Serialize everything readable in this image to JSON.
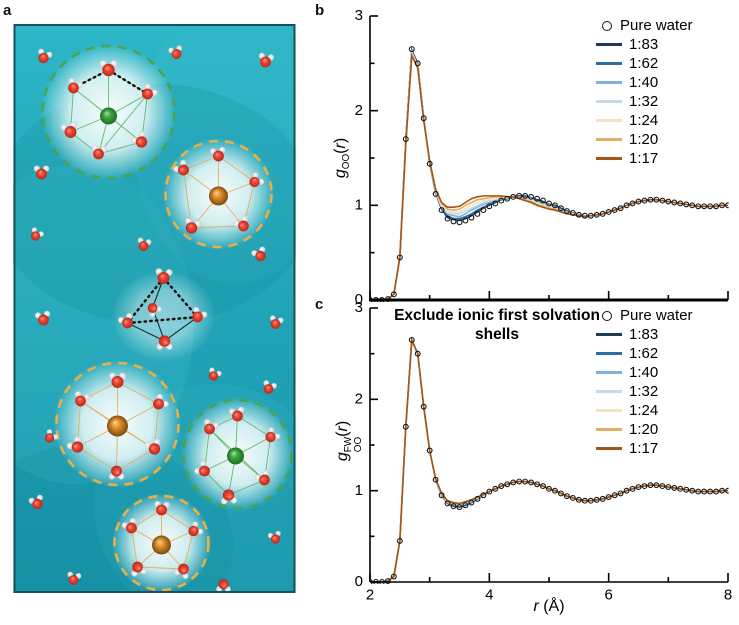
{
  "panel_labels": {
    "a": "a",
    "b": "b",
    "c": "c"
  },
  "colors": {
    "axis": "#000000",
    "teal_background": "#1ea9bc",
    "green_shell": "#4ba24f",
    "orange_shell": "#ecaf45",
    "oxygen_red": "#e0392a",
    "hydrogen_white": "#f2f2f2"
  },
  "chart_data": [
    {
      "id": "gOO",
      "panel": "b",
      "type": "line",
      "title": "",
      "ylabel_html": "<i>g</i><sub>OO</sub>(<i>r</i>)",
      "xlabel_html": "<i>r</i> (&#197;)",
      "xlim": [
        2,
        8
      ],
      "ylim": [
        0,
        3
      ],
      "xticks": [
        2,
        4,
        6,
        8
      ],
      "xminor": [
        3,
        5,
        7
      ],
      "yticks": [
        0,
        1,
        2,
        3
      ],
      "yminor": [
        0.5,
        1.5,
        2.5
      ],
      "legend_position": "top-right",
      "grid": false,
      "r_start": 2.0,
      "r_step": 0.1,
      "pure_water": {
        "label": "Pure water",
        "marker": "open-circle",
        "color": "#000000",
        "values": [
          0,
          0,
          0,
          0.01,
          0.06,
          0.45,
          1.7,
          2.65,
          2.5,
          1.92,
          1.44,
          1.12,
          0.95,
          0.86,
          0.83,
          0.82,
          0.84,
          0.87,
          0.91,
          0.95,
          0.99,
          1.02,
          1.05,
          1.07,
          1.09,
          1.1,
          1.1,
          1.09,
          1.07,
          1.05,
          1.02,
          1.0,
          0.97,
          0.94,
          0.92,
          0.9,
          0.89,
          0.89,
          0.9,
          0.91,
          0.93,
          0.95,
          0.97,
          1.0,
          1.02,
          1.04,
          1.05,
          1.06,
          1.06,
          1.05,
          1.04,
          1.03,
          1.02,
          1.01,
          1.0,
          0.99,
          0.99,
          0.99,
          0.99,
          1.0,
          1.0
        ]
      },
      "overlay_r_start": 2.6,
      "series": [
        {
          "label": "1:83",
          "color": "#1b3a5c",
          "values": [
            1.7,
            2.64,
            2.5,
            1.92,
            1.44,
            1.13,
            0.96,
            0.87,
            0.85,
            0.84,
            0.86,
            0.89,
            0.93,
            0.97,
            1.0,
            1.03,
            1.06,
            1.07,
            1.09,
            1.1,
            1.1,
            1.08,
            1.06,
            1.04,
            1.01,
            1.0,
            0.97,
            0.94,
            0.92,
            0.9,
            0.89
          ]
        },
        {
          "label": "1:62",
          "color": "#2e6da4",
          "values": [
            1.69,
            2.63,
            2.49,
            1.92,
            1.45,
            1.13,
            0.97,
            0.89,
            0.86,
            0.86,
            0.88,
            0.91,
            0.95,
            0.98,
            1.01,
            1.04,
            1.06,
            1.07,
            1.09,
            1.09,
            1.09,
            1.08,
            1.05,
            1.03,
            1.01,
            0.99,
            0.96,
            0.93,
            0.92,
            0.9,
            0.89
          ]
        },
        {
          "label": "1:40",
          "color": "#7fb2d5",
          "values": [
            1.68,
            2.62,
            2.48,
            1.91,
            1.45,
            1.14,
            0.98,
            0.91,
            0.89,
            0.88,
            0.91,
            0.95,
            0.98,
            1.01,
            1.03,
            1.05,
            1.07,
            1.08,
            1.09,
            1.09,
            1.08,
            1.07,
            1.04,
            1.02,
            1.0,
            0.98,
            0.95,
            0.93,
            0.91,
            0.9,
            0.89
          ]
        },
        {
          "label": "1:32",
          "color": "#c6d9e8",
          "values": [
            1.67,
            2.61,
            2.47,
            1.91,
            1.46,
            1.15,
            0.99,
            0.92,
            0.91,
            0.91,
            0.94,
            0.97,
            1.0,
            1.03,
            1.05,
            1.06,
            1.08,
            1.08,
            1.09,
            1.08,
            1.07,
            1.06,
            1.03,
            1.01,
            0.99,
            0.97,
            0.95,
            0.92,
            0.91,
            0.89,
            0.88
          ]
        },
        {
          "label": "1:24",
          "color": "#f2e4c2",
          "values": [
            1.67,
            2.6,
            2.47,
            1.91,
            1.46,
            1.15,
            1.0,
            0.94,
            0.93,
            0.93,
            0.97,
            1.0,
            1.03,
            1.05,
            1.06,
            1.07,
            1.08,
            1.08,
            1.09,
            1.08,
            1.07,
            1.05,
            1.02,
            1.0,
            0.98,
            0.97,
            0.94,
            0.92,
            0.91,
            0.89,
            0.88
          ]
        },
        {
          "label": "1:20",
          "color": "#e3ae62",
          "values": [
            1.66,
            2.59,
            2.46,
            1.9,
            1.46,
            1.16,
            1.02,
            0.96,
            0.95,
            0.96,
            1.0,
            1.03,
            1.06,
            1.07,
            1.08,
            1.09,
            1.09,
            1.09,
            1.09,
            1.08,
            1.06,
            1.04,
            1.01,
            0.99,
            0.97,
            0.96,
            0.94,
            0.92,
            0.9,
            0.89,
            0.88
          ]
        },
        {
          "label": "1:17",
          "color": "#a4561a",
          "values": [
            1.65,
            2.58,
            2.45,
            1.9,
            1.47,
            1.17,
            1.03,
            0.98,
            0.98,
            0.99,
            1.03,
            1.07,
            1.09,
            1.1,
            1.1,
            1.1,
            1.1,
            1.09,
            1.09,
            1.07,
            1.05,
            1.03,
            1.0,
            0.98,
            0.96,
            0.95,
            0.93,
            0.91,
            0.9,
            0.89,
            0.88
          ]
        }
      ]
    },
    {
      "id": "gOO_FW",
      "panel": "c",
      "type": "line",
      "title": "Exclude ionic first solvation shells",
      "ylabel_html": "<i>g</i><span class='stack'><sup>FW</sup><sub>OO</sub></span>(<i>r</i>)",
      "xlabel_html": "<i>r</i> (&#197;)",
      "xlim": [
        2,
        8
      ],
      "ylim": [
        0,
        3
      ],
      "xticks": [
        2,
        4,
        6,
        8
      ],
      "xminor": [
        3,
        5,
        7
      ],
      "yticks": [
        0,
        1,
        2,
        3
      ],
      "yminor": [
        0.5,
        1.5,
        2.5
      ],
      "legend_position": "top-right",
      "grid": false,
      "r_start": 2.0,
      "r_step": 0.1,
      "pure_water": {
        "label": "Pure water",
        "marker": "open-circle",
        "color": "#000000",
        "values": [
          0,
          0,
          0,
          0.01,
          0.06,
          0.45,
          1.7,
          2.65,
          2.5,
          1.92,
          1.44,
          1.12,
          0.95,
          0.86,
          0.83,
          0.82,
          0.84,
          0.87,
          0.91,
          0.95,
          0.99,
          1.02,
          1.05,
          1.07,
          1.09,
          1.1,
          1.1,
          1.09,
          1.07,
          1.05,
          1.02,
          1.0,
          0.97,
          0.94,
          0.92,
          0.9,
          0.89,
          0.89,
          0.9,
          0.91,
          0.93,
          0.95,
          0.97,
          1.0,
          1.02,
          1.04,
          1.05,
          1.06,
          1.06,
          1.05,
          1.04,
          1.03,
          1.02,
          1.01,
          1.0,
          0.99,
          0.99,
          0.99,
          0.99,
          1.0,
          1.0
        ]
      },
      "overlay_r_start": 3.0,
      "series": [
        {
          "label": "1:83",
          "color": "#1b3a5c",
          "values": [
            1.44,
            1.12,
            0.95,
            0.86,
            0.83,
            0.82,
            0.84,
            0.87,
            0.91,
            0.95,
            0.99
          ]
        },
        {
          "label": "1:62",
          "color": "#2e6da4",
          "values": [
            1.44,
            1.12,
            0.95,
            0.87,
            0.84,
            0.83,
            0.85,
            0.88,
            0.91,
            0.95,
            0.99
          ]
        },
        {
          "label": "1:40",
          "color": "#7fb2d5",
          "values": [
            1.44,
            1.12,
            0.96,
            0.87,
            0.85,
            0.84,
            0.86,
            0.88,
            0.92,
            0.95,
            0.99
          ]
        },
        {
          "label": "1:32",
          "color": "#c6d9e8",
          "values": [
            1.44,
            1.13,
            0.96,
            0.88,
            0.85,
            0.84,
            0.86,
            0.89,
            0.92,
            0.96,
            0.99
          ]
        },
        {
          "label": "1:24",
          "color": "#f2e4c2",
          "values": [
            1.44,
            1.13,
            0.96,
            0.88,
            0.86,
            0.85,
            0.87,
            0.89,
            0.92,
            0.96,
            0.99
          ]
        },
        {
          "label": "1:20",
          "color": "#e3ae62",
          "values": [
            1.44,
            1.13,
            0.97,
            0.88,
            0.86,
            0.85,
            0.87,
            0.89,
            0.93,
            0.96,
            0.99
          ]
        },
        {
          "label": "1:17",
          "color": "#a4561a",
          "values": [
            1.44,
            1.13,
            0.97,
            0.89,
            0.87,
            0.86,
            0.88,
            0.9,
            0.93,
            0.96,
            0.99
          ]
        }
      ]
    }
  ]
}
